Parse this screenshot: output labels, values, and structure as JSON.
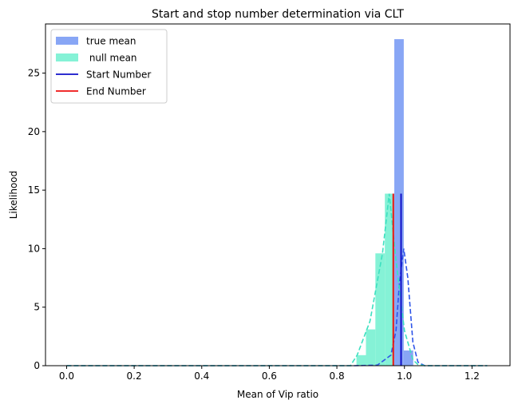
{
  "chart_data": {
    "type": "bar",
    "title": "Start and stop number determination via CLT",
    "xlabel": "Mean of Vip ratio",
    "ylabel": "Likelihood",
    "xlim": [
      -0.0625,
      1.3125
    ],
    "ylim": [
      0,
      29.2
    ],
    "xticks": [
      0.0,
      0.2,
      0.4,
      0.6,
      0.8,
      1.0,
      1.2
    ],
    "xtick_labels": [
      "0.0",
      "0.2",
      "0.4",
      "0.6",
      "0.8",
      "1.0",
      "1.2"
    ],
    "yticks": [
      0,
      5,
      10,
      15,
      20,
      25
    ],
    "ytick_labels": [
      "0",
      "5",
      "10",
      "15",
      "20",
      "25"
    ],
    "grid": false,
    "legend_position": "upper left",
    "legend": [
      {
        "label": "true mean",
        "kind": "patch",
        "color": "#88a6f5"
      },
      {
        "label": " null mean",
        "kind": "patch",
        "color": "#85f2d6"
      },
      {
        "label": "Start Number",
        "kind": "line",
        "color": "#1010c8"
      },
      {
        "label": "End Number",
        "kind": "line",
        "color": "#ee1010"
      }
    ],
    "histograms": [
      {
        "name": "null mean",
        "color": "#85f2d6",
        "bins": [
          {
            "x0": 0.858,
            "x1": 0.886,
            "y": 0.9
          },
          {
            "x0": 0.886,
            "x1": 0.914,
            "y": 3.1
          },
          {
            "x0": 0.914,
            "x1": 0.942,
            "y": 9.6
          },
          {
            "x0": 0.942,
            "x1": 0.97,
            "y": 14.7
          }
        ]
      },
      {
        "name": "true mean",
        "color": "#88a6f5",
        "bins": [
          {
            "x0": 0.97,
            "x1": 0.998,
            "y": 27.9
          },
          {
            "x0": 0.998,
            "x1": 1.026,
            "y": 1.3
          }
        ]
      }
    ],
    "density_curves": [
      {
        "name": "true mean density",
        "color": "#2f55e8",
        "points": [
          [
            0.0,
            0.0
          ],
          [
            0.85,
            0.0
          ],
          [
            0.92,
            0.05
          ],
          [
            0.96,
            0.9
          ],
          [
            0.975,
            3.0
          ],
          [
            0.985,
            7.0
          ],
          [
            0.998,
            10.0
          ],
          [
            1.01,
            7.5
          ],
          [
            1.025,
            2.0
          ],
          [
            1.04,
            0.3
          ],
          [
            1.06,
            0.0
          ],
          [
            1.245,
            0.0
          ]
        ]
      },
      {
        "name": "null mean density",
        "color": "#3de0c0",
        "points": [
          [
            0.0,
            0.0
          ],
          [
            0.84,
            0.0
          ],
          [
            0.86,
            0.9
          ],
          [
            0.898,
            3.8
          ],
          [
            0.935,
            9.6
          ],
          [
            0.955,
            14.7
          ],
          [
            0.975,
            9.0
          ],
          [
            1.0,
            3.0
          ],
          [
            1.025,
            0.5
          ],
          [
            1.04,
            0.1
          ],
          [
            1.06,
            0.0
          ],
          [
            1.245,
            0.0
          ]
        ]
      }
    ],
    "vertical_lines": [
      {
        "name": "Start Number",
        "x": 0.99,
        "y": 14.7,
        "color": "#1010c8"
      },
      {
        "name": "End Number",
        "x": 0.967,
        "y": 14.7,
        "color": "#ee1010"
      }
    ]
  }
}
